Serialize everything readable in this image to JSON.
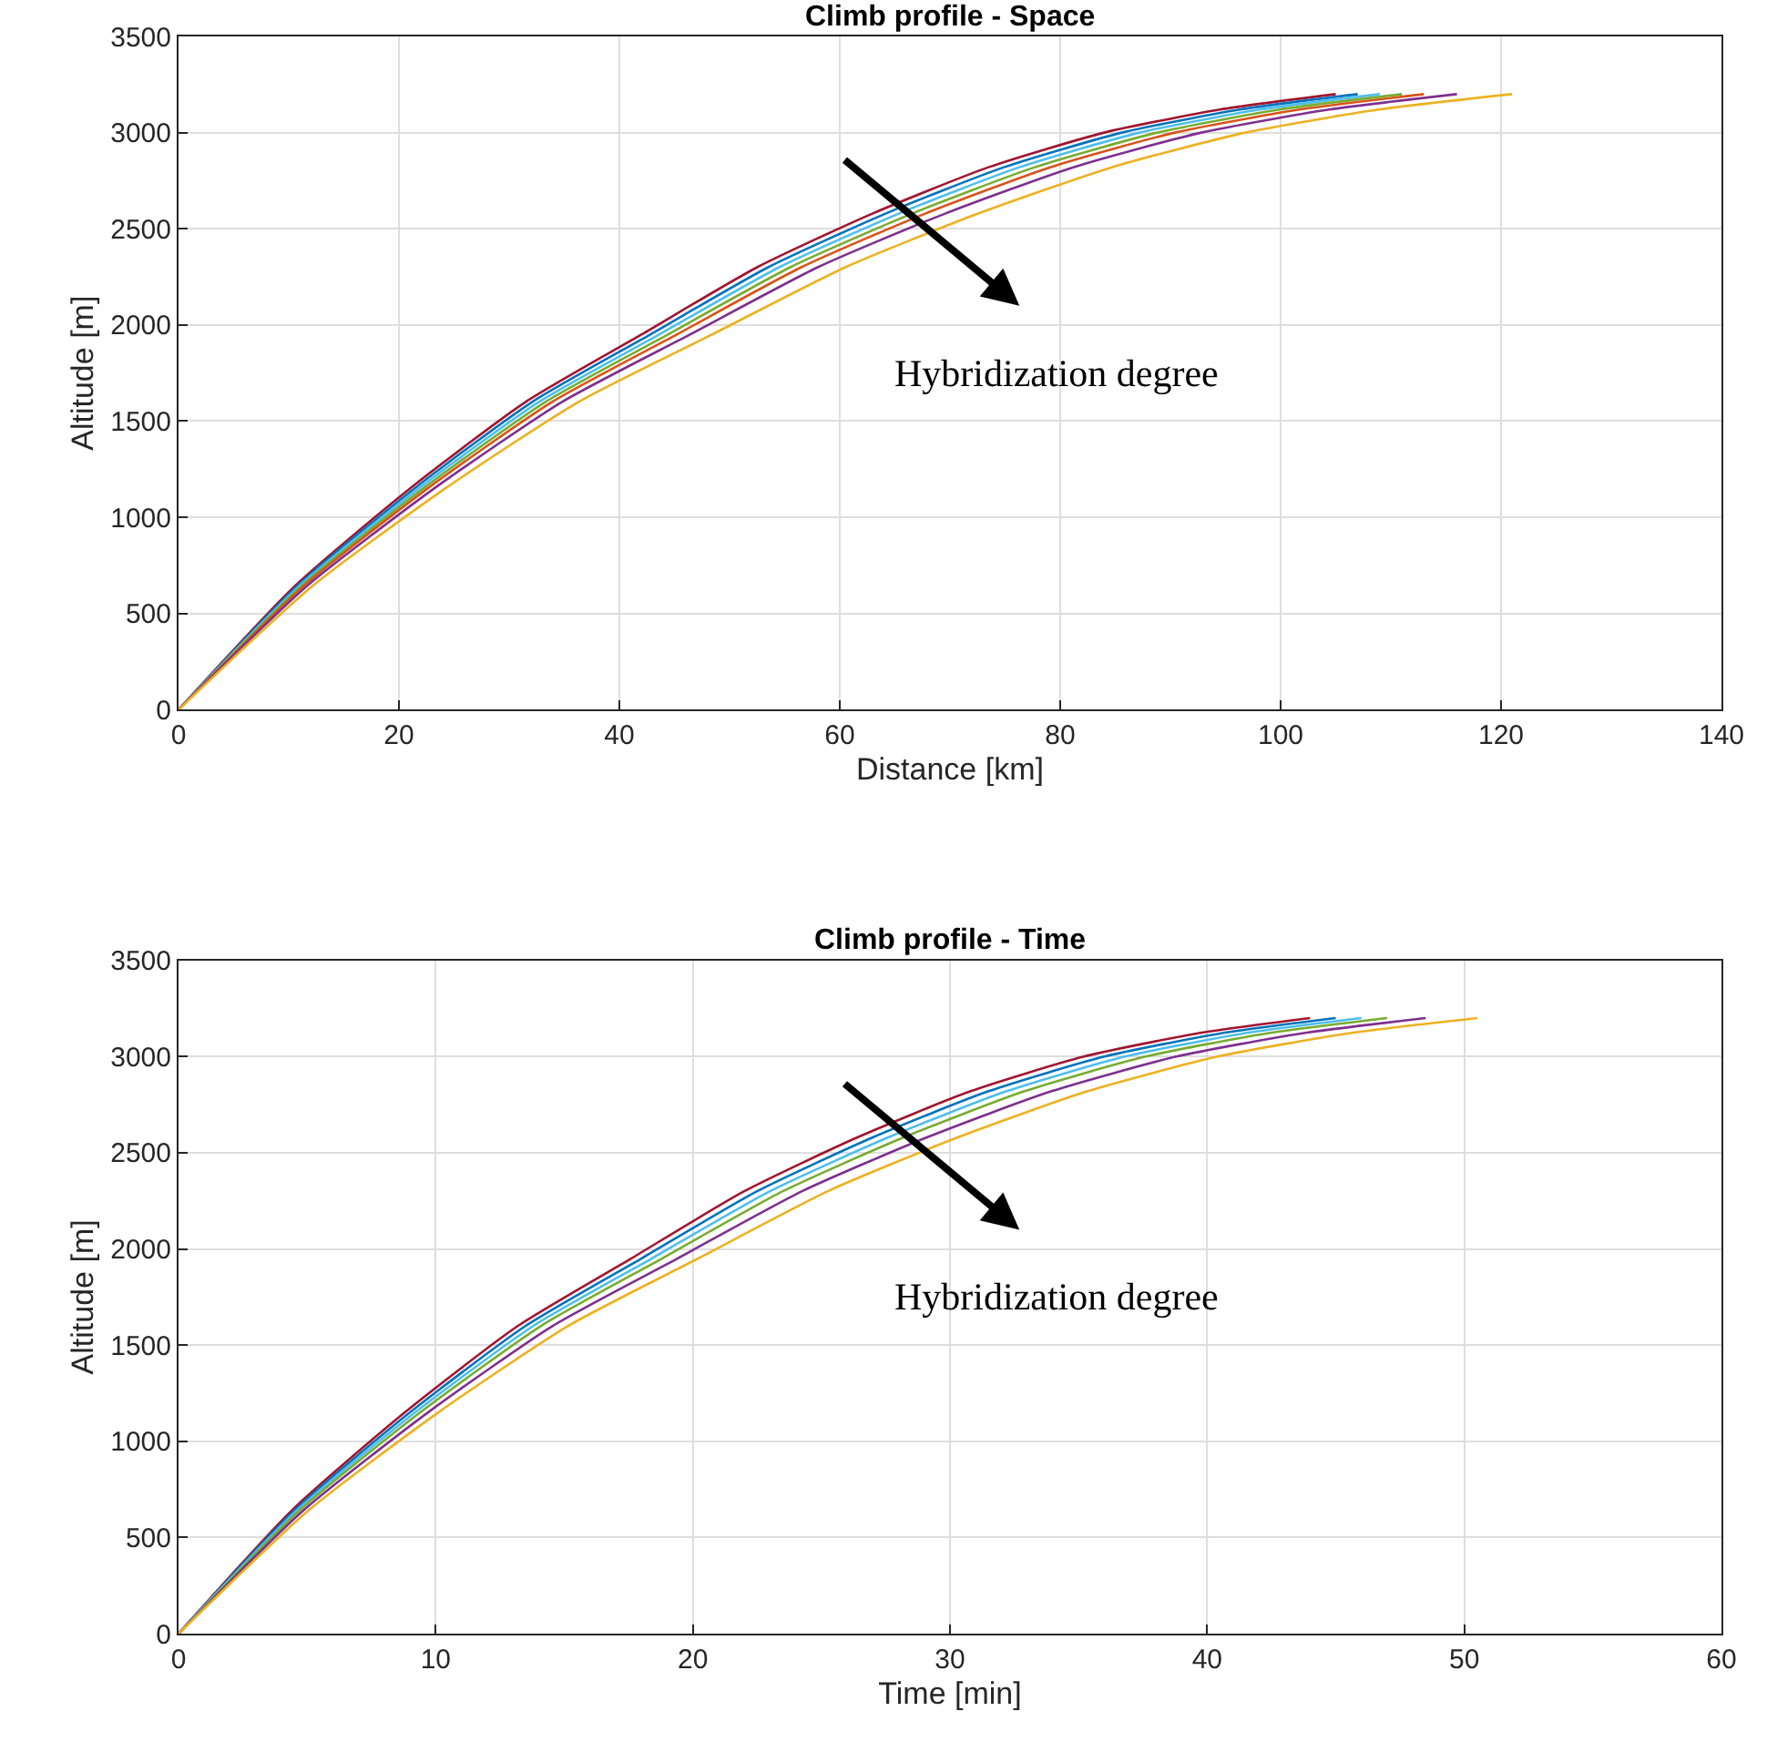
{
  "chart_data": [
    {
      "type": "line",
      "title": "Climb profile - Space",
      "xlabel": "Distance [km]",
      "ylabel": "Altitude [m]",
      "xlim": [
        0,
        140
      ],
      "xticks": [
        0,
        20,
        40,
        60,
        80,
        100,
        120,
        140
      ],
      "ylim": [
        0,
        3500
      ],
      "yticks": [
        0,
        500,
        1000,
        1500,
        2000,
        2500,
        3000,
        3500
      ],
      "grid": true,
      "annotations": [
        "Hybridization degree"
      ],
      "series": [
        {
          "color": "#a2142f",
          "x": [
            0,
            10.5,
            21,
            31.5,
            42,
            52.5,
            63,
            73.5,
            84,
            94.5,
            105
          ],
          "values": [
            0,
            640,
            1150,
            1600,
            1950,
            2300,
            2580,
            2820,
            3000,
            3120,
            3200
          ]
        },
        {
          "color": "#0072bd",
          "x": [
            0,
            10.7,
            21.4,
            32.1,
            42.8,
            53.5,
            64.2,
            74.9,
            85.6,
            96.3,
            107
          ],
          "values": [
            0,
            640,
            1150,
            1600,
            1950,
            2300,
            2580,
            2820,
            3000,
            3120,
            3200
          ]
        },
        {
          "color": "#4dbeee",
          "x": [
            0,
            10.9,
            21.8,
            32.7,
            43.6,
            54.5,
            65.4,
            76.3,
            87.2,
            98.1,
            109
          ],
          "values": [
            0,
            640,
            1150,
            1600,
            1950,
            2300,
            2580,
            2820,
            3000,
            3120,
            3200
          ]
        },
        {
          "color": "#77ac30",
          "x": [
            0,
            11.1,
            22.2,
            33.3,
            44.4,
            55.5,
            66.6,
            77.7,
            88.8,
            99.9,
            111
          ],
          "values": [
            0,
            640,
            1150,
            1600,
            1950,
            2300,
            2580,
            2820,
            3000,
            3120,
            3200
          ]
        },
        {
          "color": "#d95319",
          "x": [
            0,
            11.3,
            22.6,
            33.9,
            45.2,
            56.5,
            67.8,
            79.1,
            90.4,
            101.7,
            113
          ],
          "values": [
            0,
            640,
            1150,
            1600,
            1950,
            2300,
            2580,
            2820,
            3000,
            3120,
            3200
          ]
        },
        {
          "color": "#7e2f8e",
          "x": [
            0,
            11.6,
            23.2,
            34.8,
            46.4,
            58,
            69.6,
            81.2,
            92.8,
            104.4,
            116
          ],
          "values": [
            0,
            640,
            1150,
            1600,
            1950,
            2300,
            2580,
            2820,
            3000,
            3120,
            3200
          ]
        },
        {
          "color": "#edb120",
          "x": [
            0,
            12.1,
            24.2,
            36.3,
            48.4,
            60.5,
            72.6,
            84.7,
            96.8,
            108.9,
            121
          ],
          "values": [
            0,
            640,
            1150,
            1600,
            1950,
            2300,
            2580,
            2820,
            3000,
            3120,
            3200
          ]
        }
      ]
    },
    {
      "type": "line",
      "title": "Climb profile - Time",
      "xlabel": "Time [min]",
      "ylabel": "Altitude [m]",
      "xlim": [
        0,
        60
      ],
      "xticks": [
        0,
        10,
        20,
        30,
        40,
        50,
        60
      ],
      "ylim": [
        0,
        3500
      ],
      "yticks": [
        0,
        500,
        1000,
        1500,
        2000,
        2500,
        3000,
        3500
      ],
      "grid": true,
      "annotations": [
        "Hybridization degree"
      ],
      "series": [
        {
          "color": "#a2142f",
          "x": [
            0,
            4.4,
            8.8,
            13.2,
            17.6,
            22,
            26.4,
            30.8,
            35.2,
            39.6,
            44
          ],
          "values": [
            0,
            640,
            1150,
            1600,
            1950,
            2300,
            2580,
            2820,
            3000,
            3120,
            3200
          ]
        },
        {
          "color": "#0072bd",
          "x": [
            0,
            4.5,
            9,
            13.5,
            18,
            22.5,
            27,
            31.5,
            36,
            40.5,
            45
          ],
          "values": [
            0,
            640,
            1150,
            1600,
            1950,
            2300,
            2580,
            2820,
            3000,
            3120,
            3200
          ]
        },
        {
          "color": "#4dbeee",
          "x": [
            0,
            4.6,
            9.2,
            13.8,
            18.4,
            23,
            27.6,
            32.2,
            36.8,
            41.4,
            46
          ],
          "values": [
            0,
            640,
            1150,
            1600,
            1950,
            2300,
            2580,
            2820,
            3000,
            3120,
            3200
          ]
        },
        {
          "color": "#77ac30",
          "x": [
            0,
            4.7,
            9.4,
            14.1,
            18.8,
            23.5,
            28.2,
            32.9,
            37.6,
            42.3,
            47
          ],
          "values": [
            0,
            640,
            1150,
            1600,
            1950,
            2300,
            2580,
            2820,
            3000,
            3120,
            3200
          ]
        },
        {
          "color": "#7e2f8e",
          "x": [
            0,
            4.85,
            9.7,
            14.55,
            19.4,
            24.25,
            29.1,
            33.95,
            38.8,
            43.65,
            48.5
          ],
          "values": [
            0,
            640,
            1150,
            1600,
            1950,
            2300,
            2580,
            2820,
            3000,
            3120,
            3200
          ]
        },
        {
          "color": "#edb120",
          "x": [
            0,
            5.05,
            10.1,
            15.15,
            20.2,
            25.25,
            30.3,
            35.35,
            40.4,
            45.45,
            50.5
          ],
          "values": [
            0,
            640,
            1150,
            1600,
            1950,
            2300,
            2580,
            2820,
            3000,
            3120,
            3200
          ]
        }
      ]
    }
  ]
}
